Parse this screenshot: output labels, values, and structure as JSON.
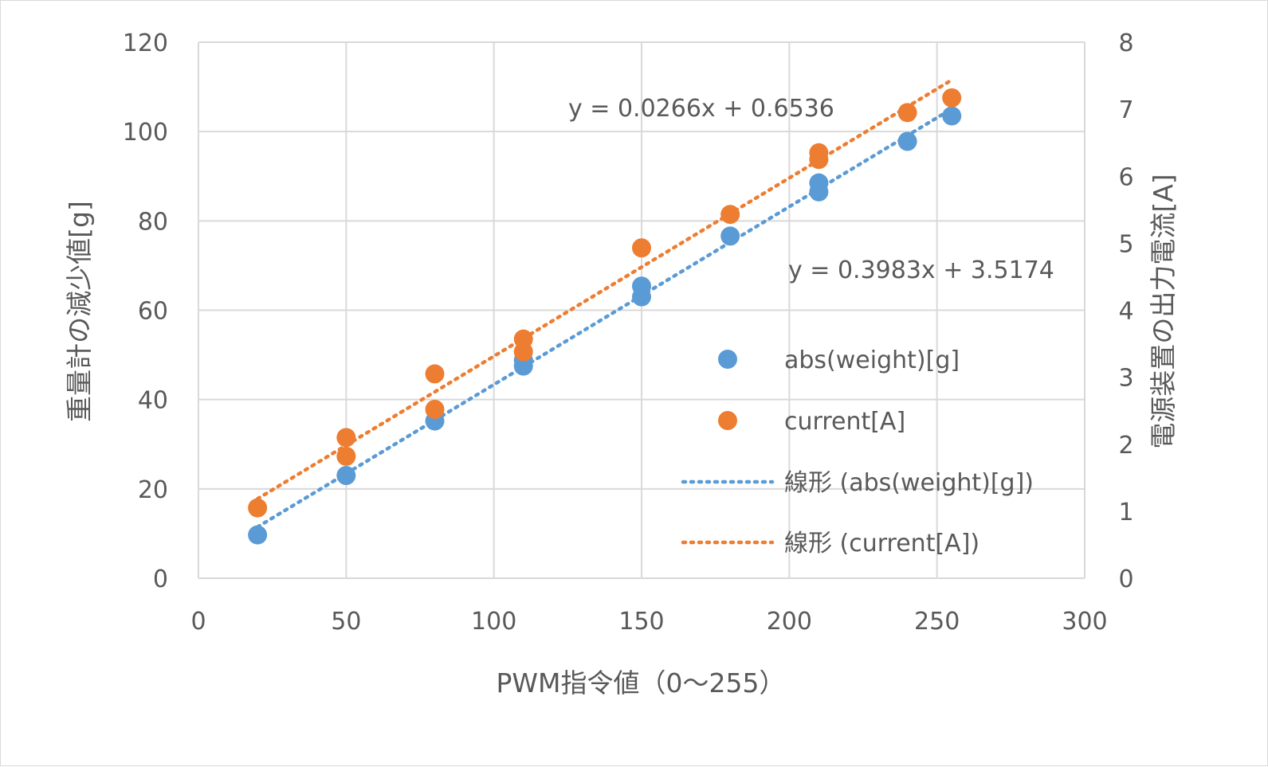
{
  "chart_data": {
    "type": "scatter",
    "x_axis": {
      "label": "PWM指令値（0〜255）",
      "range": [
        0,
        300
      ],
      "ticks": [
        0,
        50,
        100,
        150,
        200,
        250,
        300
      ]
    },
    "y_axis_left": {
      "label": "重量計の減少値[g]",
      "range": [
        0,
        120
      ],
      "ticks": [
        0,
        20,
        40,
        60,
        80,
        100,
        120
      ]
    },
    "y_axis_right": {
      "label": "電源装置の出力電流[A]",
      "range": [
        0,
        8
      ],
      "ticks": [
        0,
        1,
        2,
        3,
        4,
        5,
        6,
        7,
        8
      ]
    },
    "grid": true,
    "legend_position": "right",
    "series": [
      {
        "name": "abs(weight)[g]",
        "axis": "left",
        "color": "#5b9bd5",
        "points": [
          [
            20,
            9.7
          ],
          [
            50,
            23.0
          ],
          [
            80,
            35.2
          ],
          [
            110,
            47.5
          ],
          [
            110,
            48.8
          ],
          [
            150,
            63.0
          ],
          [
            150,
            65.4
          ],
          [
            180,
            76.6
          ],
          [
            210,
            86.5
          ],
          [
            210,
            88.5
          ],
          [
            240,
            97.8
          ],
          [
            255,
            103.5
          ]
        ]
      },
      {
        "name": "current[A]",
        "axis": "right",
        "color": "#ed7d31",
        "points": [
          [
            20,
            1.05
          ],
          [
            50,
            1.82
          ],
          [
            50,
            2.1
          ],
          [
            80,
            2.52
          ],
          [
            80,
            3.05
          ],
          [
            110,
            3.38
          ],
          [
            110,
            3.57
          ],
          [
            150,
            4.93
          ],
          [
            180,
            5.43
          ],
          [
            210,
            6.25
          ],
          [
            210,
            6.35
          ],
          [
            240,
            6.95
          ],
          [
            255,
            7.17
          ]
        ]
      }
    ],
    "trendlines": [
      {
        "name": "線形 (abs(weight)[g])",
        "axis": "left",
        "color": "#5b9bd5",
        "slope": 0.3983,
        "intercept": 3.5174,
        "x_range": [
          20,
          255
        ],
        "equation": "y = 0.3983x + 3.5174"
      },
      {
        "name": "線形 (current[A])",
        "axis": "right",
        "color": "#ed7d31",
        "slope": 0.0266,
        "intercept": 0.6536,
        "x_range": [
          20,
          255
        ],
        "equation": "y = 0.0266x + 0.6536"
      }
    ],
    "legend": [
      {
        "label": "abs(weight)[g]",
        "kind": "marker",
        "color": "#5b9bd5"
      },
      {
        "label": "current[A]",
        "kind": "marker",
        "color": "#ed7d31"
      },
      {
        "label": "線形 (abs(weight)[g])",
        "kind": "line",
        "color": "#5b9bd5"
      },
      {
        "label": "線形 (current[A])",
        "kind": "line",
        "color": "#ed7d31"
      }
    ],
    "colors": {
      "grid": "#d9d9d9",
      "text": "#595959",
      "weight": "#5b9bd5",
      "current": "#ed7d31"
    }
  }
}
